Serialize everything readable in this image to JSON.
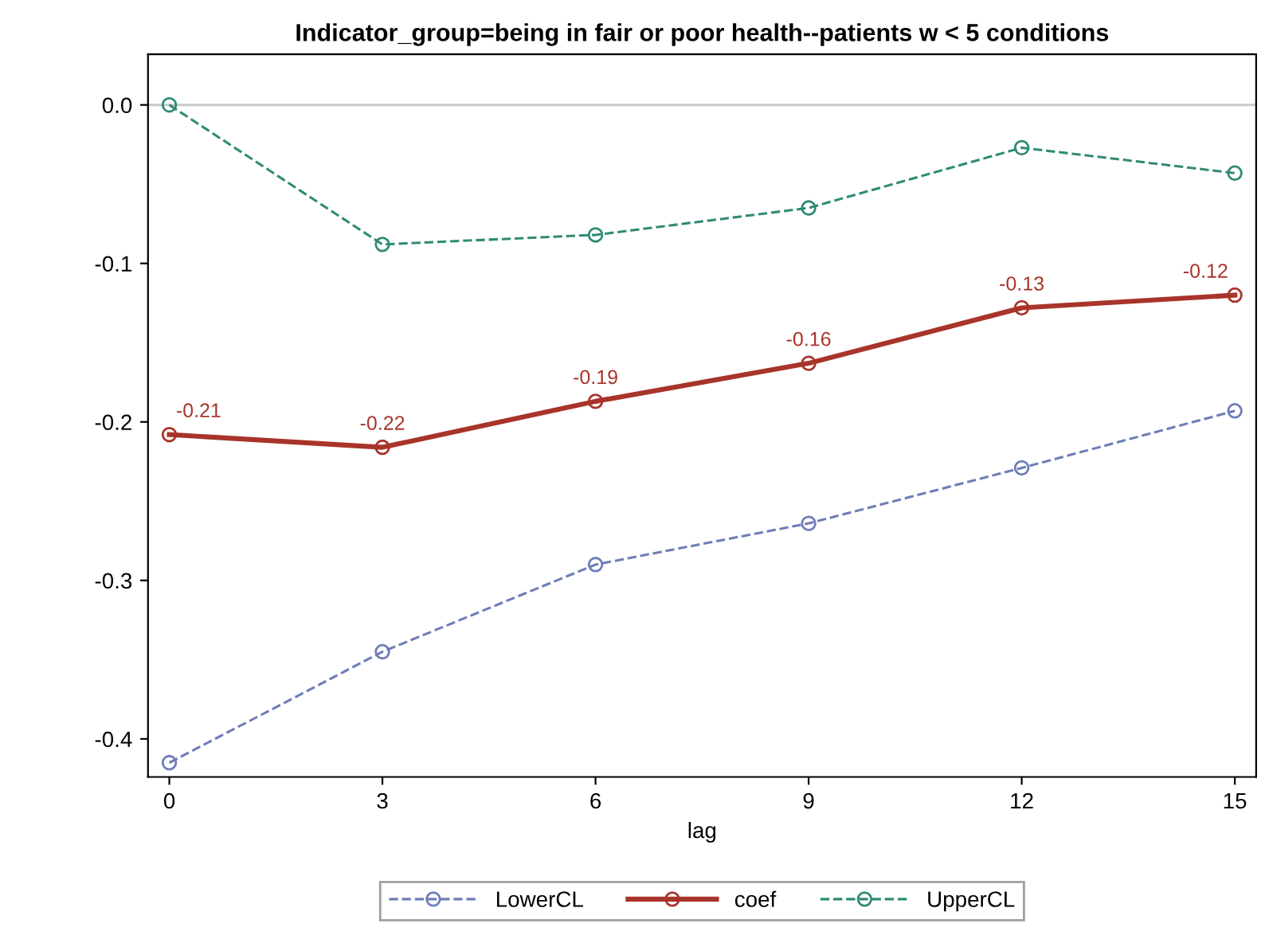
{
  "chart_data": {
    "type": "line",
    "title": "Indicator_group=being in fair or poor health--patients w < 5 conditions",
    "xlabel": "lag",
    "x": [
      0,
      3,
      6,
      9,
      12,
      15
    ],
    "series": [
      {
        "name": "LowerCL",
        "color": "#6f7db8",
        "values": [
          -0.415,
          -0.345,
          -0.29,
          -0.264,
          -0.229,
          -0.193
        ],
        "line_style": "dashed"
      },
      {
        "name": "coef",
        "color": "#a8342a",
        "values": [
          -0.208,
          -0.216,
          -0.187,
          -0.163,
          -0.128,
          -0.12
        ],
        "line_style": "solid",
        "value_labels": [
          "-0.21",
          "-0.22",
          "-0.19",
          "-0.16",
          "-0.13",
          "-0.12"
        ]
      },
      {
        "name": "UpperCL",
        "color": "#2f8b76",
        "values": [
          0.0,
          -0.088,
          -0.082,
          -0.065,
          -0.027,
          -0.043
        ],
        "line_style": "dashed"
      }
    ],
    "marker": "circle",
    "xlim": [
      -0.3,
      15.3
    ],
    "xticks": [
      0,
      3,
      6,
      9,
      12,
      15
    ],
    "ylim": [
      -0.424,
      0.032
    ],
    "yticks": [
      {
        "value": -0.4,
        "label": "-0.4"
      },
      {
        "value": -0.3,
        "label": "-0.3"
      },
      {
        "value": -0.2,
        "label": "-0.2"
      },
      {
        "value": -0.1,
        "label": "-0.1"
      },
      {
        "value": 0,
        "label": "0.0"
      }
    ],
    "ref_lines": [
      {
        "axis": "y",
        "value": 0,
        "color": "#c8c8c8"
      }
    ],
    "grid": false,
    "legend": "bottom"
  }
}
